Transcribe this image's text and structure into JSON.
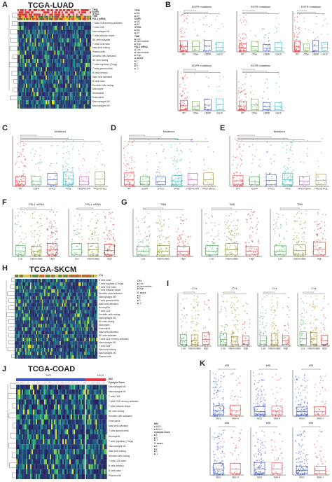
{
  "panels": {
    "A": {
      "label": "A",
      "title": "TCGA-LUAD",
      "annotation_rows": [
        "TP53",
        "EGFR",
        "STK11",
        "TMB",
        "PDL1 mRNA"
      ],
      "cells": [
        "T cells CD4 memory activated",
        "T cells CD8",
        "Macrophages M1",
        "T cells follicular helper",
        "NK cells activated",
        "T cells CD4 naive",
        "Mast cells resting",
        "Plasma cells",
        "Dendritic cells activated",
        "NK cells resting",
        "T cells regulatory (Tregs)",
        "T cells gamma delta",
        "B cells memory",
        "Mast cells activated",
        "B cells naive",
        "Dendritic cells resting",
        "Monocytes",
        "Neutrophils",
        "Eosinophils",
        "Macrophages M0",
        "Macrophages M2"
      ],
      "legend": [
        {
          "title": "TP53",
          "items": [
            "MU",
            "WT"
          ]
        },
        {
          "title": "EGFR",
          "items": [
            "MU",
            "WT"
          ]
        },
        {
          "title": "STK11",
          "items": [
            "MU",
            "WT"
          ]
        },
        {
          "title": "TMB",
          "items": [
            "Low",
            "Intermediate",
            "High"
          ]
        },
        {
          "title": "PDL1 mRNA",
          "items": [
            "Low",
            "Intermediate",
            "High"
          ]
        },
        {
          "title": "Z- score",
          "items": [
            "4",
            "2",
            "0",
            "-2"
          ]
        }
      ]
    },
    "B": {
      "label": "B",
      "titles": [
        "EGFR mutations",
        "EGFR mutations",
        "EGFR mutations",
        "EGFR mutations",
        "EGFR mutations"
      ],
      "groups": [
        "WT",
        "Other",
        "L858R",
        "Del19"
      ]
    },
    "C": {
      "label": "C",
      "title": "Mutations",
      "groups": [
        "WT",
        "EGFR",
        "STK11",
        "TP53",
        "TP53+EGFR",
        "TP53+STK11"
      ]
    },
    "D": {
      "label": "D",
      "title": "Mutations",
      "groups": [
        "WT",
        "EGFR",
        "STK11",
        "TP53",
        "TP53+EGFR",
        "TP53+STK11"
      ]
    },
    "E": {
      "label": "E",
      "title": "Mutations",
      "groups": [
        "WT",
        "EGFR",
        "STK11",
        "TP53",
        "TP53+EGFR",
        "TP53+STK11"
      ]
    },
    "F": {
      "label": "F",
      "titles": [
        "PDL1 mRNA",
        "PDL1 mRNA"
      ],
      "groups": [
        "Low",
        "Intermediate",
        "High"
      ]
    },
    "G": {
      "label": "G",
      "titles": [
        "TMB",
        "TMB",
        "TMB"
      ],
      "groups": [
        "Low",
        "Intermediate",
        "High"
      ]
    },
    "H": {
      "label": "H",
      "title": "TCGA-SKCM",
      "cells": [
        "B cells naive",
        "T cells regulatory (Tregs)",
        "T cells CD4 naive",
        "T cells follicular helper",
        "Dendritic cells activated",
        "Macrophages M0",
        "T cells gamma delta",
        "Mast cells activated",
        "Neutrophils",
        "T cells CD8",
        "Dendritic cells resting",
        "Macrophages M2",
        "NK cells resting",
        "Monocytes",
        "Eosinophils",
        "Mast cells activated",
        "NK cells activated",
        "T cells CD4 memory activated",
        "Macrophages M1",
        "T cells CD8",
        "Mast cells resting",
        "Macrophages M2",
        "Plasma cells"
      ],
      "legend": [
        {
          "title": "CYs",
          "items": [
            "Low",
            "Intermediate",
            "High"
          ]
        },
        {
          "title": "Z- score",
          "items": [
            "4",
            "2",
            "0",
            "-2"
          ]
        }
      ]
    },
    "I": {
      "label": "I",
      "titles": [
        "CYs",
        "CYs",
        "CYs",
        "CYs"
      ],
      "groups": [
        "Low",
        "Intermediate",
        "High"
      ]
    },
    "J": {
      "label": "J",
      "title": "TCGA-COAD",
      "group_labels": [
        "MSS",
        "MSI-H"
      ],
      "cells": [
        "Macrophages M0",
        "Macrophages M1",
        "T cells CD8",
        "T cells CD4 memory activated",
        "T cells follicular helper",
        "NK cells resting",
        "Dendritic cells activated",
        "Eosinophils",
        "Mast cells activated",
        "T cells gamma delta",
        "Neutrophils",
        "T cells regulatory (Tregs)",
        "Macrophages M2",
        "Mast cells resting",
        "Dendritic cells resting",
        "T cells CD4 naive",
        "B cells memory",
        "B cells naive",
        "Plasma cells"
      ],
      "legend": [
        {
          "title": "MSI",
          "items": [
            "MSS",
            "MSI-H"
          ]
        },
        {
          "title": "Cytolytic Score",
          "items": [
            "2",
            "0",
            "-2"
          ]
        },
        {
          "title": "Z- score",
          "items": [
            "4",
            "2",
            "0",
            "-2"
          ]
        }
      ]
    },
    "K": {
      "label": "K",
      "titles": [
        "MSI",
        "MSI",
        "MSI",
        "MSI",
        "MSI",
        "MSI"
      ],
      "groups": [
        "MSS",
        "MSI-H"
      ]
    }
  },
  "colors": {
    "dark": "#2c1a5e",
    "teal": "#1f8f8c",
    "green": "#3fbc62",
    "yellow": "#f2e61d",
    "red": "#e2393e",
    "blue": "#3a56c8"
  }
}
